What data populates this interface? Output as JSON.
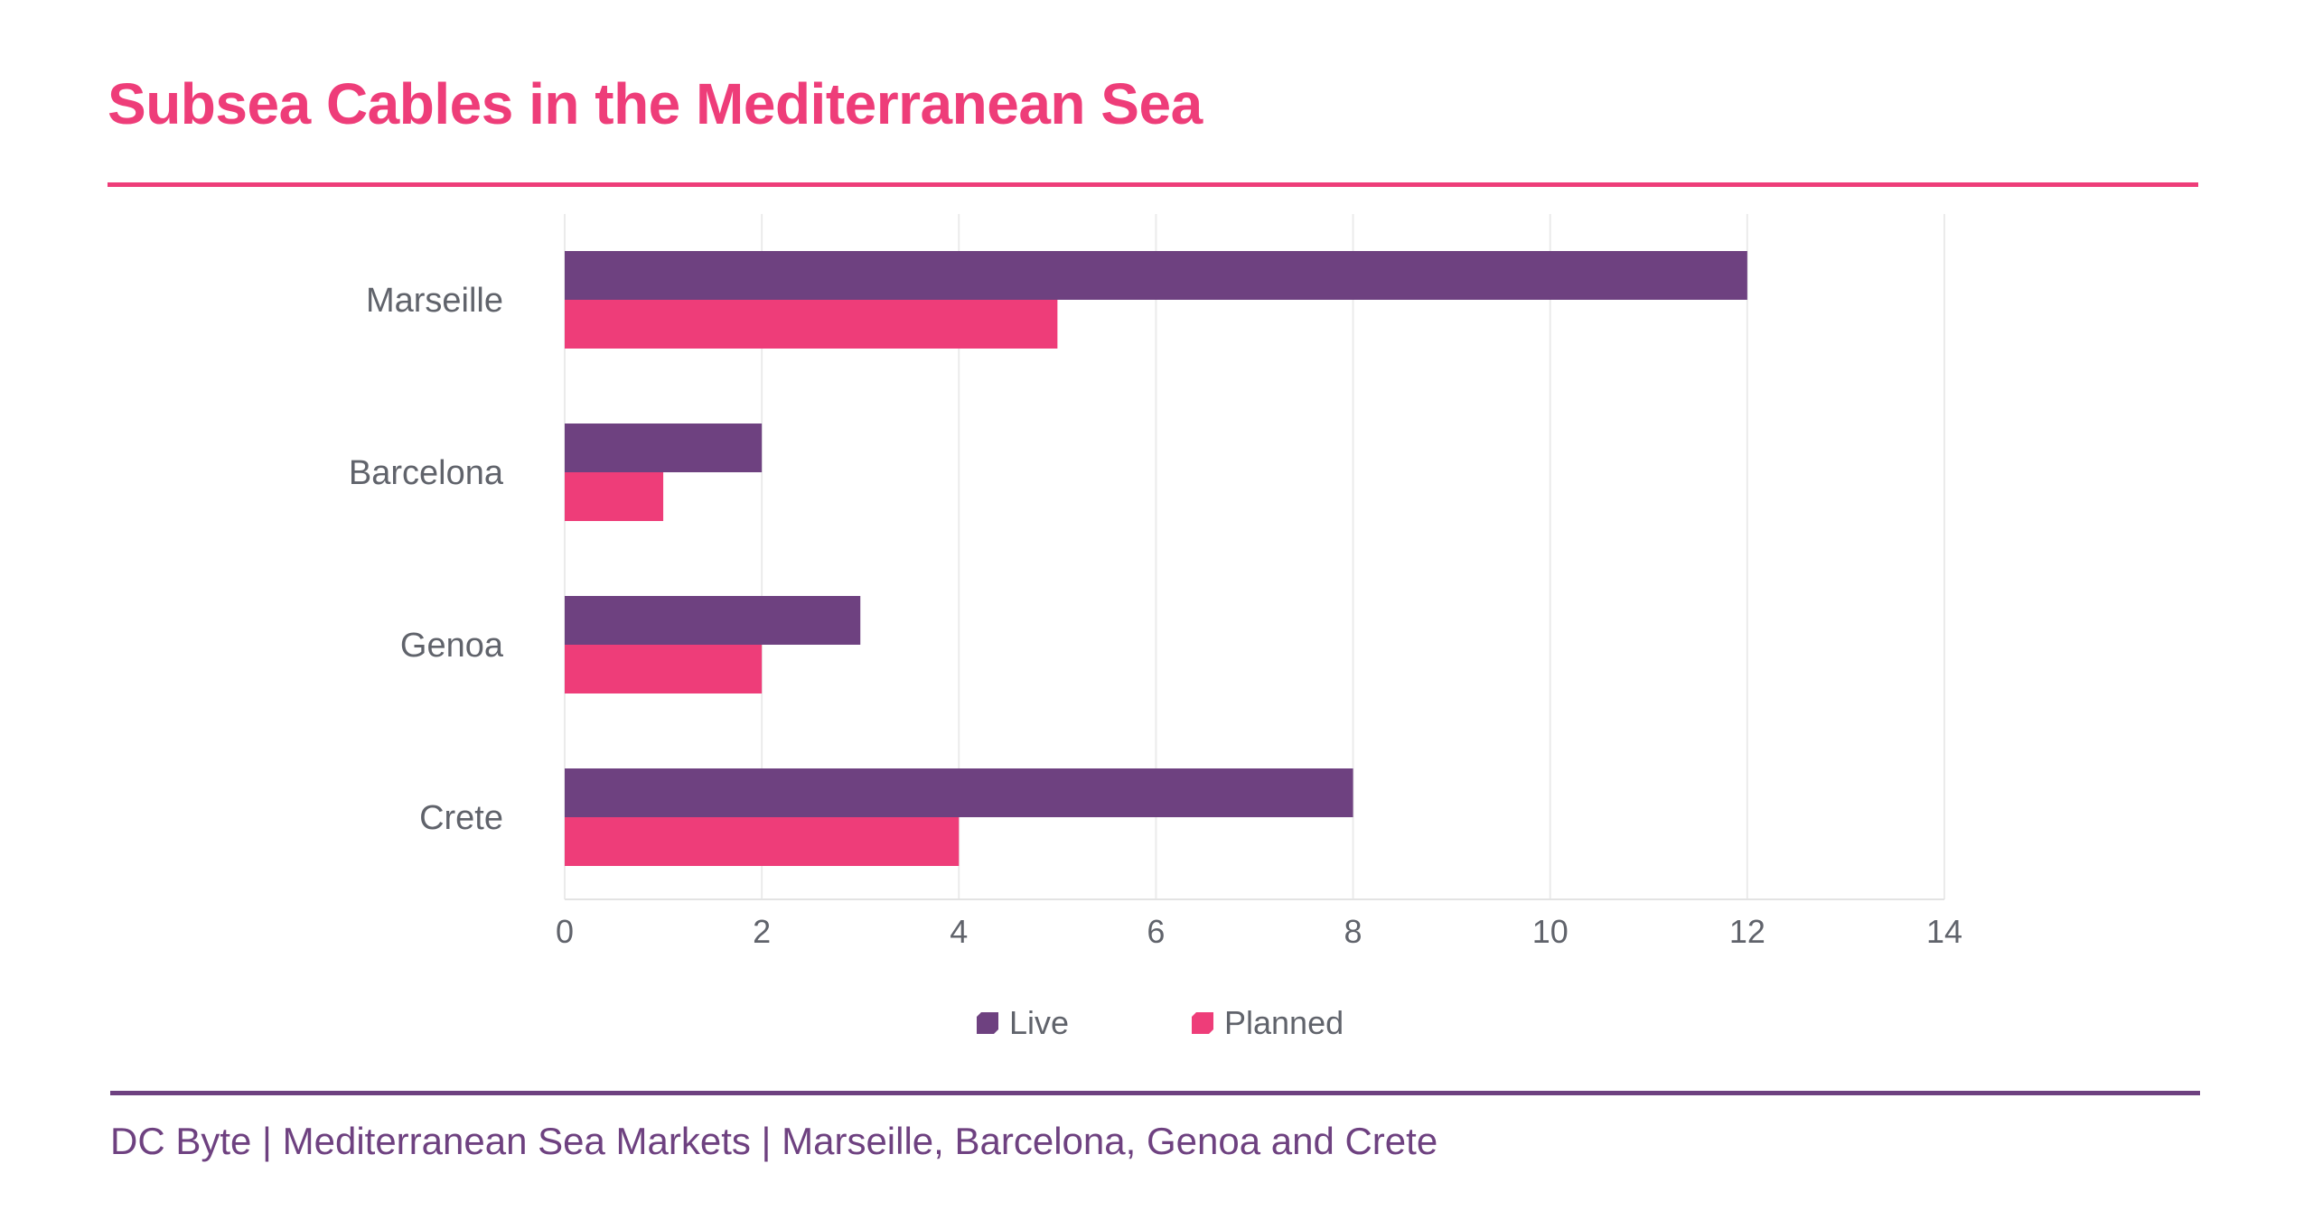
{
  "title": "Subsea Cables in the Mediterranean Sea",
  "footer": "DC Byte | Mediterranean Sea Markets | Marseille, Barcelona, Genoa and Crete",
  "chart_data": {
    "type": "bar",
    "orientation": "horizontal",
    "categories": [
      "Marseille",
      "Barcelona",
      "Genoa",
      "Crete"
    ],
    "series": [
      {
        "name": "Live",
        "values": [
          12,
          2,
          3,
          8
        ],
        "color": "#6e4180"
      },
      {
        "name": "Planned",
        "values": [
          5,
          1,
          2,
          4
        ],
        "color": "#ee3d79"
      }
    ],
    "xlim": [
      0,
      14
    ],
    "xticks": [
      "0",
      "2",
      "4",
      "6",
      "8",
      "10",
      "12",
      "14"
    ],
    "grid": true,
    "legend": "bottom"
  }
}
